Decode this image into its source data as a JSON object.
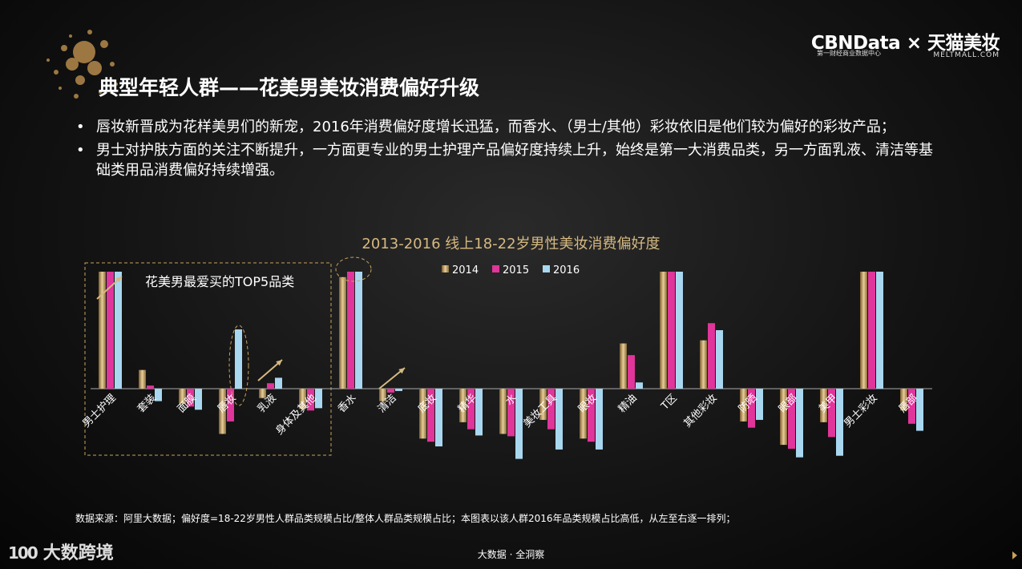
{
  "header": {
    "logo_left": "CBNData",
    "logo_x": "×",
    "logo_right": "天猫美妆",
    "logo_sub_left": "第一财经商业数据中心",
    "logo_sub_right": "MELTMALL.COM"
  },
  "title": "典型年轻人群——花美男美妆消费偏好升级",
  "bullets": [
    "唇妆新晋成为花样美男们的新宠，2016年消费偏好度增长迅猛，而香水、（男士/其他）彩妆依旧是他们较为偏好的彩妆产品；",
    "男士对护肤方面的关注不断提升，一方面更专业的男士护理产品偏好度持续上升，始终是第一大消费品类，另一方面乳液、清洁等基础类用品消费偏好持续增强。"
  ],
  "bullet_symbol": "•",
  "callout": "花美男最爱买的TOP5品类",
  "colors": {
    "s2014": "#bfa06a",
    "s2015": "#e0359a",
    "s2016": "#a9d7f0",
    "title": "#d6b981",
    "accent": "#c9a15a"
  },
  "chart_data": {
    "type": "bar",
    "title": "2013-2016 线上18-22岁男性美妆消费偏好度",
    "categories": [
      "男士护理",
      "套装",
      "面膜",
      "唇妆",
      "乳液",
      "身体及其他",
      "香水",
      "清洁",
      "底妆",
      "精华",
      "水",
      "美妆工具",
      "眼妆",
      "精油",
      "T区",
      "其他彩妆",
      "防晒",
      "眼部",
      "美甲",
      "男士彩妆",
      "唇部"
    ],
    "series": [
      {
        "name": "2014",
        "values": [
          150,
          24,
          -19,
          -58,
          -12,
          -26,
          143,
          -16,
          -64,
          -43,
          -58,
          -40,
          -64,
          58,
          150,
          62,
          -42,
          -72,
          -43,
          150,
          -28
        ]
      },
      {
        "name": "2015",
        "values": [
          150,
          4,
          -23,
          -42,
          7,
          -28,
          150,
          -5,
          -68,
          -52,
          -61,
          -52,
          -68,
          43,
          150,
          84,
          -50,
          -77,
          -62,
          150,
          -45
        ]
      },
      {
        "name": "2016",
        "values": [
          150,
          -16,
          -27,
          76,
          14,
          -25,
          150,
          -3,
          -74,
          -60,
          -90,
          -78,
          -78,
          8,
          150,
          75,
          -40,
          -88,
          -86,
          150,
          -54
        ]
      }
    ],
    "ylim": [
      -92,
      150
    ],
    "xlabel": "",
    "ylabel": "",
    "legend": "top-center",
    "grid": false
  },
  "source": "数据来源：阿里大数据；偏好度=18-22岁男性人群品类规模占比/整体人群品类规模占比；本图表以该人群2016年品类规模占比高低，从左至右逐一排列；",
  "footer": {
    "center": "大数据 · 全洞察",
    "brand_mark": "100",
    "brand_text": "大数跨境"
  }
}
